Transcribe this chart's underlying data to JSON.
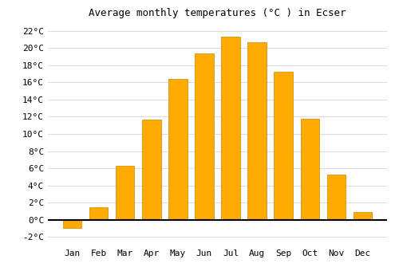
{
  "title": "Average monthly temperatures (°C ) in Ecser",
  "months": [
    "Jan",
    "Feb",
    "Mar",
    "Apr",
    "May",
    "Jun",
    "Jul",
    "Aug",
    "Sep",
    "Oct",
    "Nov",
    "Dec"
  ],
  "values": [
    -1.0,
    1.5,
    6.3,
    11.7,
    16.4,
    19.4,
    21.3,
    20.7,
    17.2,
    11.8,
    5.3,
    0.9
  ],
  "bar_color": "#FFAA00",
  "bar_edge_color": "#CC8800",
  "ylim": [
    -3,
    23
  ],
  "yticks": [
    -2,
    0,
    2,
    4,
    6,
    8,
    10,
    12,
    14,
    16,
    18,
    20,
    22
  ],
  "ytick_labels": [
    "-2°C",
    "0°C",
    "2°C",
    "4°C",
    "6°C",
    "8°C",
    "10°C",
    "12°C",
    "14°C",
    "16°C",
    "18°C",
    "20°C",
    "22°C"
  ],
  "bg_color": "#FFFFFF",
  "grid_color": "#DDDDDD",
  "bar_width": 0.7,
  "title_fontsize": 9,
  "tick_fontsize": 8
}
